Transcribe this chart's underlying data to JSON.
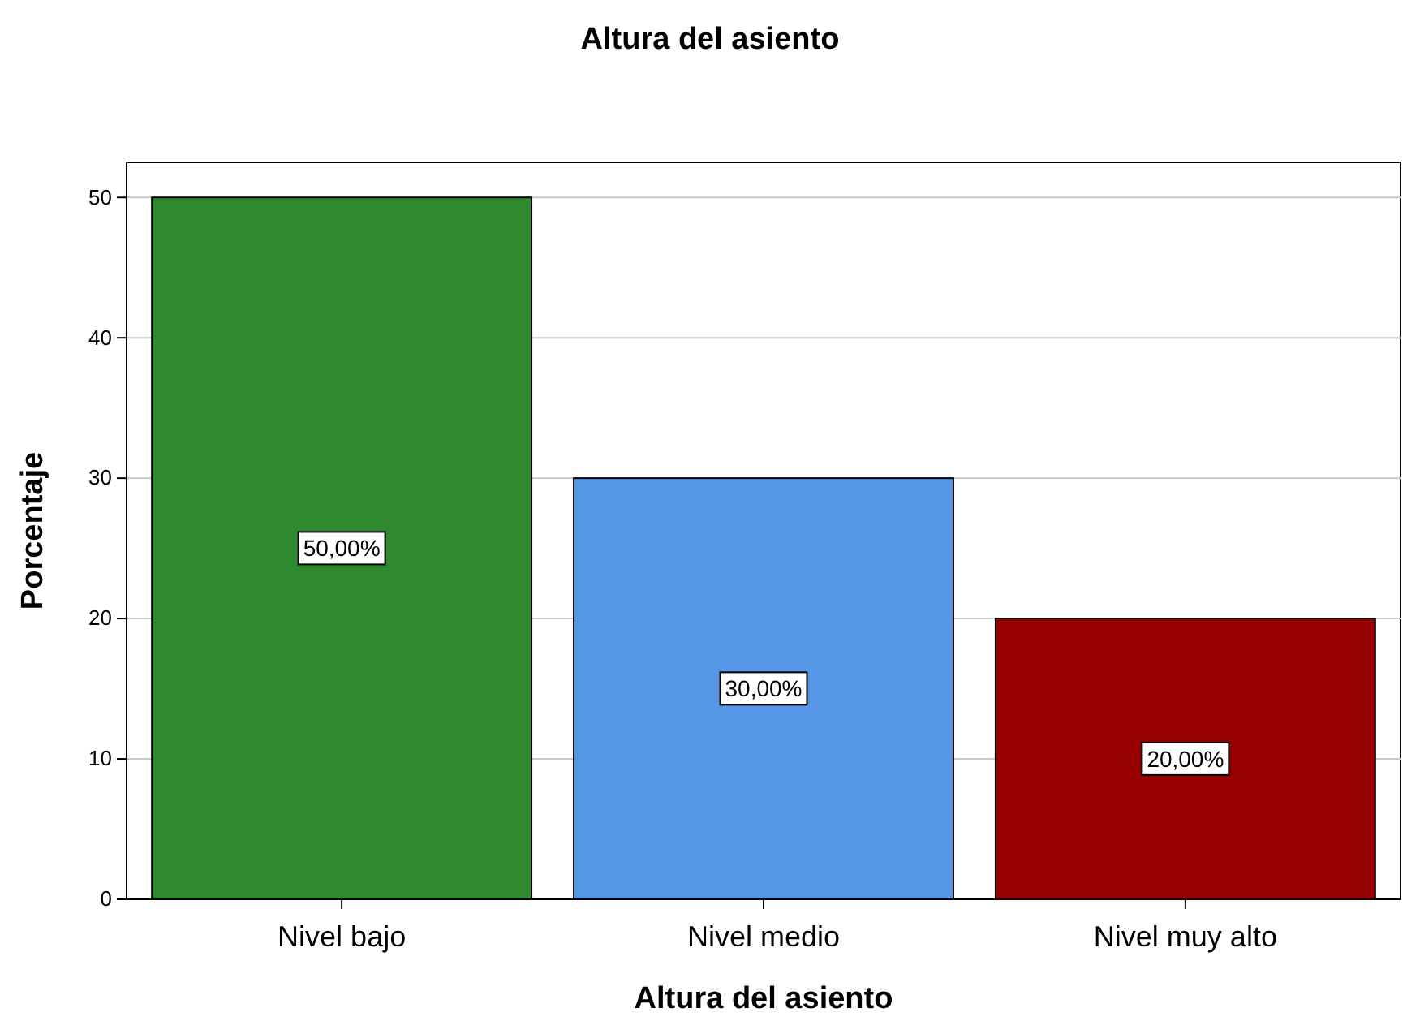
{
  "chart_data": {
    "type": "bar",
    "title": "Altura del asiento",
    "xlabel": "Altura del asiento",
    "ylabel": "Porcentaje",
    "categories": [
      "Nivel bajo",
      "Nivel medio",
      "Nivel muy alto"
    ],
    "values": [
      50,
      30,
      20
    ],
    "colors": [
      "#2f8a2f",
      "#5597e6",
      "#990000"
    ],
    "value_labels": [
      "50,00%",
      "30,00%",
      "20,00%"
    ],
    "ylim": [
      0,
      52.5
    ],
    "yticks": [
      0,
      10,
      20,
      30,
      40,
      50
    ],
    "grid": "y"
  }
}
